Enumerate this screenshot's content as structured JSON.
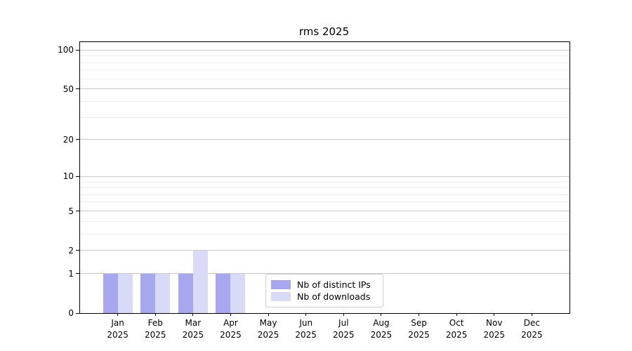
{
  "chart_data": {
    "type": "bar",
    "title": "rms 2025",
    "categories": [
      "Jan",
      "Feb",
      "Mar",
      "Apr",
      "May",
      "Jun",
      "Jul",
      "Aug",
      "Sep",
      "Oct",
      "Nov",
      "Dec"
    ],
    "category_year": "2025",
    "series": [
      {
        "name": "Nb of distinct IPs",
        "color": "#a7a7f0",
        "values": [
          1,
          1,
          1,
          1,
          0,
          0,
          0,
          0,
          0,
          0,
          0,
          0
        ]
      },
      {
        "name": "Nb of downloads",
        "color": "#d9d9f8",
        "values": [
          1,
          1,
          2,
          1,
          0,
          0,
          0,
          0,
          0,
          0,
          0,
          0
        ]
      }
    ],
    "y_axis": {
      "scale": "log1p",
      "range": [
        0,
        115
      ],
      "major_ticks": [
        0,
        1,
        2,
        5,
        10,
        20,
        50,
        100
      ],
      "minor_ticks": [
        3,
        4,
        6,
        7,
        8,
        9,
        30,
        40,
        60,
        70,
        80,
        90
      ]
    },
    "xlabel": "",
    "ylabel": "",
    "grid": "horizontal",
    "legend_position": "bottom-center"
  },
  "colors": {
    "major_grid": "#c9c9c9",
    "minor_grid": "#ebebeb",
    "spine": "#000000",
    "text": "#000000",
    "legend_border": "#cccccc",
    "background": "#ffffff"
  }
}
